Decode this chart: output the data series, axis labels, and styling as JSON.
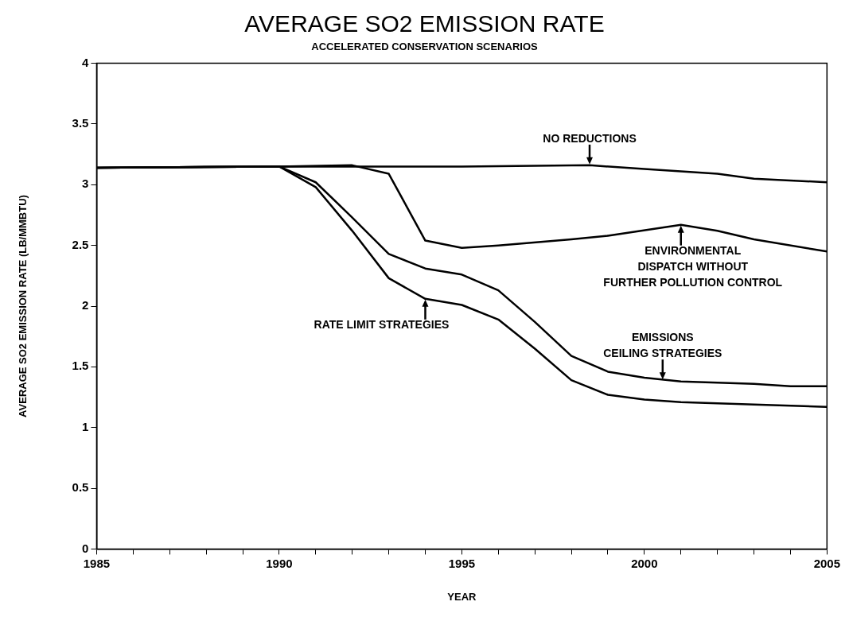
{
  "chart_data": {
    "type": "line",
    "title": "AVERAGE SO2 EMISSION RATE",
    "subtitle": "ACCELERATED CONSERVATION SCENARIOS",
    "xlabel": "YEAR",
    "ylabel": "AVERAGE SO2 EMISSION RATE (LB/MMBTU)",
    "xlim": [
      1985,
      2005
    ],
    "ylim": [
      0,
      4
    ],
    "xticks": [
      1985,
      {
        "value": 1986,
        "label": null
      },
      {
        "value": 1987,
        "label": null
      },
      {
        "value": 1988,
        "label": null
      },
      {
        "value": 1989,
        "label": null
      },
      1990,
      {
        "value": 1991,
        "label": null
      },
      {
        "value": 1992,
        "label": null
      },
      {
        "value": 1993,
        "label": null
      },
      {
        "value": 1994,
        "label": null
      },
      1995,
      {
        "value": 1996,
        "label": null
      },
      {
        "value": 1997,
        "label": null
      },
      {
        "value": 1998,
        "label": null
      },
      {
        "value": 1999,
        "label": null
      },
      2000,
      {
        "value": 2001,
        "label": null
      },
      {
        "value": 2002,
        "label": null
      },
      {
        "value": 2003,
        "label": null
      },
      {
        "value": 2004,
        "label": null
      },
      2005
    ],
    "yticks": [
      0,
      0.5,
      1,
      1.5,
      2,
      2.5,
      3,
      3.5,
      4
    ],
    "grid": false,
    "legend": false,
    "marker": "none",
    "line_style": "solid",
    "series": [
      {
        "color": "#000000",
        "x": [
          1985,
          1990,
          1995,
          1998.5,
          2000,
          2002,
          2003,
          2005
        ],
        "values": [
          3.14,
          3.15,
          3.15,
          3.16,
          3.13,
          3.09,
          3.05,
          3.02
        ]
      },
      {
        "color": "#000000",
        "x": [
          1985,
          1990,
          1992,
          1993,
          1994,
          1995,
          1996,
          1998,
          1999,
          2001,
          2002,
          2003,
          2005
        ],
        "values": [
          3.14,
          3.15,
          3.16,
          3.09,
          2.54,
          2.48,
          2.5,
          2.55,
          2.58,
          2.67,
          2.62,
          2.55,
          2.45
        ]
      },
      {
        "color": "#000000",
        "x": [
          1985,
          1990,
          1991,
          1992,
          1993,
          1994,
          1995,
          1996,
          1997,
          1998,
          1999,
          2000,
          2001,
          2003,
          2004,
          2005
        ],
        "values": [
          3.14,
          3.15,
          3.02,
          2.73,
          2.43,
          2.31,
          2.26,
          2.13,
          1.87,
          1.59,
          1.46,
          1.41,
          1.38,
          1.36,
          1.34,
          1.34
        ]
      },
      {
        "color": "#000000",
        "x": [
          1985,
          1990,
          1991,
          1992,
          1993,
          1994,
          1995,
          1996,
          1997,
          1998,
          1999,
          2000,
          2001,
          2003,
          2005
        ],
        "values": [
          3.14,
          3.15,
          2.98,
          2.62,
          2.23,
          2.06,
          2.01,
          1.89,
          1.65,
          1.39,
          1.27,
          1.23,
          1.21,
          1.19,
          1.17
        ]
      }
    ],
    "annotations": [
      {
        "text": "NO REDUCTIONS",
        "x": 1998.5,
        "y": 3.16
      },
      {
        "text": "ENVIRONMENTAL\nDISPATCH WITHOUT\nFURTHER POLLUTION CONTROL",
        "x": 2001,
        "y": 2.67
      },
      {
        "text": "RATE LIMIT STRATEGIES",
        "x": 1994,
        "y": 2.06
      },
      {
        "text": "EMISSIONS\nCEILING STRATEGIES",
        "x": 2000.5,
        "y": 1.39
      }
    ]
  }
}
